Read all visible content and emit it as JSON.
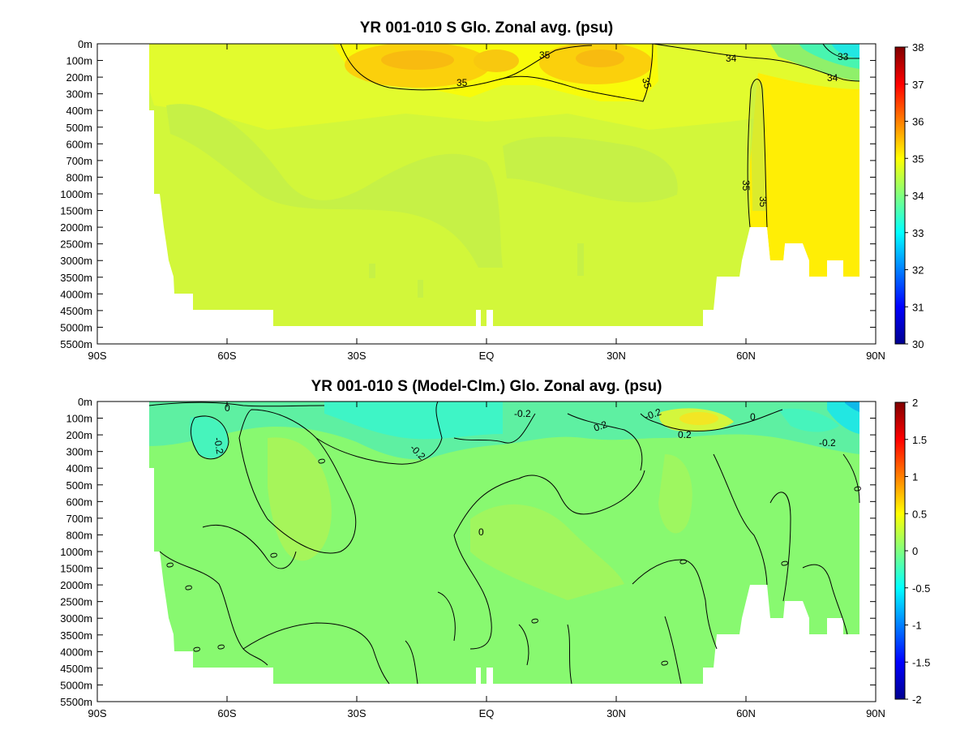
{
  "chart_data": [
    {
      "type": "heatmap",
      "title": "YR 001-010 S Glo. Zonal avg. (psu)",
      "x_ticks": [
        "90S",
        "60S",
        "30S",
        "EQ",
        "30N",
        "60N",
        "90N"
      ],
      "x_range": [
        -90,
        90
      ],
      "y_ticks": [
        "0m",
        "100m",
        "200m",
        "300m",
        "400m",
        "500m",
        "600m",
        "700m",
        "800m",
        "1000m",
        "1500m",
        "2000m",
        "2500m",
        "3000m",
        "3500m",
        "4000m",
        "4500m",
        "5000m",
        "5500m"
      ],
      "colorbar": {
        "min": 30,
        "max": 38,
        "ticks": [
          "30",
          "31",
          "32",
          "33",
          "34",
          "35",
          "36",
          "37",
          "38"
        ]
      },
      "contour_labels": [
        "35",
        "35",
        "35",
        "34",
        "33",
        "34",
        "35",
        "35"
      ],
      "colors": {
        "jet_dark_blue": "#00008f",
        "jet_blue": "#0000ff",
        "jet_cyan": "#00ffff",
        "jet_yellow": "#ffff00",
        "jet_red": "#ff0000",
        "jet_dark_red": "#800000"
      }
    },
    {
      "type": "heatmap",
      "title": "YR 001-010 S (Model-Clm.) Glo. Zonal avg. (psu)",
      "x_ticks": [
        "90S",
        "60S",
        "30S",
        "EQ",
        "30N",
        "60N",
        "90N"
      ],
      "x_range": [
        -90,
        90
      ],
      "y_ticks": [
        "0m",
        "100m",
        "200m",
        "300m",
        "400m",
        "500m",
        "600m",
        "700m",
        "800m",
        "1000m",
        "1500m",
        "2000m",
        "2500m",
        "3000m",
        "3500m",
        "4000m",
        "4500m",
        "5000m",
        "5500m"
      ],
      "colorbar": {
        "min": -2,
        "max": 2,
        "ticks": [
          "-2",
          "-1.5",
          "-1",
          "-0.5",
          "0",
          "0.5",
          "1",
          "1.5",
          "2"
        ]
      },
      "contour_labels": [
        "0",
        "-0.2",
        "0",
        "-0.2",
        "-0.2",
        "0.2",
        "-0.2",
        "0.2",
        "-0.2",
        "0",
        "0",
        "0",
        "0",
        "0",
        "0",
        "0",
        "0",
        "0",
        "0",
        "0",
        "0"
      ]
    }
  ]
}
